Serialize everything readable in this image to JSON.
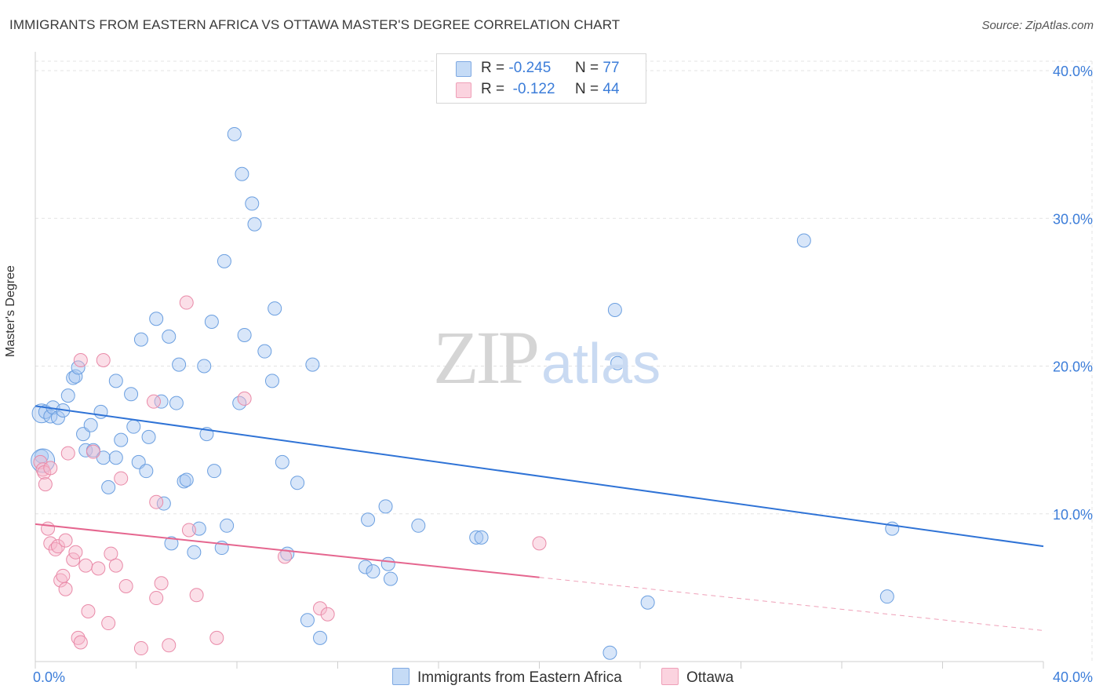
{
  "header": {
    "title": "IMMIGRANTS FROM EASTERN AFRICA VS OTTAWA MASTER'S DEGREE CORRELATION CHART",
    "source": "Source: ZipAtlas.com"
  },
  "legend_top": {
    "rows": [
      {
        "r_label": "R =",
        "r_value": "-0.245",
        "n_label": "N =",
        "n_value": "77",
        "color": "#a9c8f1"
      },
      {
        "r_label": "R =",
        "r_value": "-0.122",
        "n_label": "N =",
        "n_value": "44",
        "color": "#f6b8cb"
      }
    ]
  },
  "legend_bottom": {
    "items": [
      {
        "label": "Immigrants from Eastern Africa",
        "color": "#a9c8f1"
      },
      {
        "label": "Ottawa",
        "color": "#f6b8cb"
      }
    ]
  },
  "watermark": {
    "zip": "ZIP",
    "atlas": "atlas"
  },
  "chart_data": {
    "type": "scatter",
    "title": "IMMIGRANTS FROM EASTERN AFRICA VS OTTAWA MASTER'S DEGREE CORRELATION CHART",
    "xlabel": "",
    "ylabel": "Master's Degree",
    "xlim": [
      0,
      40
    ],
    "ylim": [
      0,
      40
    ],
    "x_tick_labels": [
      "0.0%",
      "40.0%"
    ],
    "y_tick_labels": [
      "10.0%",
      "20.0%",
      "30.0%",
      "40.0%"
    ],
    "y_ticks": [
      10,
      20,
      30,
      40
    ],
    "grid": true,
    "legend_position": "top-center",
    "series": [
      {
        "name": "Immigrants from Eastern Africa",
        "color": "#a9c8f1",
        "stroke": "#6b9fe0",
        "points": [
          [
            0.25,
            16.8
          ],
          [
            0.25,
            13.9
          ],
          [
            0.4,
            16.9
          ],
          [
            0.6,
            16.6
          ],
          [
            0.7,
            17.2
          ],
          [
            0.9,
            16.5
          ],
          [
            1.1,
            17.0
          ],
          [
            1.3,
            18.0
          ],
          [
            1.5,
            19.2
          ],
          [
            1.6,
            19.3
          ],
          [
            1.7,
            19.9
          ],
          [
            1.9,
            15.4
          ],
          [
            2.0,
            14.3
          ],
          [
            2.2,
            16.0
          ],
          [
            2.3,
            14.3
          ],
          [
            2.6,
            16.9
          ],
          [
            2.7,
            13.8
          ],
          [
            2.9,
            11.8
          ],
          [
            3.2,
            13.8
          ],
          [
            3.2,
            19.0
          ],
          [
            3.4,
            15.0
          ],
          [
            3.8,
            18.1
          ],
          [
            3.9,
            15.9
          ],
          [
            4.1,
            13.5
          ],
          [
            4.2,
            21.8
          ],
          [
            4.4,
            12.9
          ],
          [
            4.5,
            15.2
          ],
          [
            4.8,
            23.2
          ],
          [
            5.0,
            17.6
          ],
          [
            5.1,
            10.7
          ],
          [
            5.3,
            22.0
          ],
          [
            5.4,
            8.0
          ],
          [
            5.6,
            17.5
          ],
          [
            5.7,
            20.1
          ],
          [
            5.9,
            12.2
          ],
          [
            6.0,
            12.3
          ],
          [
            6.3,
            7.4
          ],
          [
            6.5,
            9.0
          ],
          [
            6.7,
            20.0
          ],
          [
            6.8,
            15.4
          ],
          [
            7.0,
            23.0
          ],
          [
            7.1,
            12.9
          ],
          [
            7.4,
            7.7
          ],
          [
            7.5,
            27.1
          ],
          [
            7.6,
            9.2
          ],
          [
            7.9,
            35.7
          ],
          [
            8.1,
            17.5
          ],
          [
            8.2,
            33.0
          ],
          [
            8.3,
            22.1
          ],
          [
            8.6,
            31.0
          ],
          [
            8.7,
            29.6
          ],
          [
            9.1,
            21.0
          ],
          [
            9.4,
            19.0
          ],
          [
            9.5,
            23.9
          ],
          [
            9.8,
            13.5
          ],
          [
            10.0,
            7.3
          ],
          [
            10.4,
            12.1
          ],
          [
            10.8,
            2.8
          ],
          [
            11.0,
            20.1
          ],
          [
            11.3,
            1.6
          ],
          [
            13.1,
            6.4
          ],
          [
            13.2,
            9.6
          ],
          [
            13.4,
            6.1
          ],
          [
            13.9,
            10.5
          ],
          [
            14.0,
            6.6
          ],
          [
            14.1,
            5.6
          ],
          [
            15.2,
            9.2
          ],
          [
            17.5,
            8.4
          ],
          [
            17.7,
            8.4
          ],
          [
            22.8,
            0.6
          ],
          [
            23.0,
            23.8
          ],
          [
            23.1,
            20.2
          ],
          [
            24.3,
            4.0
          ],
          [
            30.5,
            28.5
          ],
          [
            33.8,
            4.4
          ],
          [
            34.0,
            9.0
          ],
          [
            0.3,
            13.6
          ]
        ],
        "trend": {
          "x": [
            0,
            40
          ],
          "y": [
            17.3,
            7.8
          ]
        }
      },
      {
        "name": "Ottawa",
        "color": "#f6b8cb",
        "stroke": "#e98aa8",
        "points": [
          [
            0.2,
            13.5
          ],
          [
            0.3,
            13.0
          ],
          [
            0.35,
            12.8
          ],
          [
            0.4,
            12.0
          ],
          [
            0.6,
            13.1
          ],
          [
            0.5,
            9.0
          ],
          [
            0.6,
            8.0
          ],
          [
            0.8,
            7.6
          ],
          [
            0.9,
            7.8
          ],
          [
            1.0,
            5.5
          ],
          [
            1.1,
            5.8
          ],
          [
            1.2,
            8.2
          ],
          [
            1.2,
            4.9
          ],
          [
            1.3,
            14.1
          ],
          [
            1.5,
            6.9
          ],
          [
            1.6,
            7.4
          ],
          [
            1.7,
            1.6
          ],
          [
            1.8,
            1.3
          ],
          [
            1.8,
            20.4
          ],
          [
            2.0,
            6.5
          ],
          [
            2.1,
            3.4
          ],
          [
            2.3,
            14.2
          ],
          [
            2.5,
            6.3
          ],
          [
            2.7,
            20.4
          ],
          [
            2.9,
            2.6
          ],
          [
            3.0,
            7.3
          ],
          [
            3.2,
            6.5
          ],
          [
            3.4,
            12.4
          ],
          [
            3.6,
            5.1
          ],
          [
            4.2,
            0.9
          ],
          [
            4.7,
            17.6
          ],
          [
            4.8,
            10.8
          ],
          [
            4.8,
            4.3
          ],
          [
            5.0,
            5.3
          ],
          [
            5.3,
            1.1
          ],
          [
            6.0,
            24.3
          ],
          [
            6.1,
            8.9
          ],
          [
            6.4,
            4.5
          ],
          [
            7.2,
            1.6
          ],
          [
            8.3,
            17.8
          ],
          [
            9.9,
            7.1
          ],
          [
            11.3,
            3.6
          ],
          [
            11.6,
            3.2
          ],
          [
            20.0,
            8.0
          ]
        ],
        "trend": {
          "x": [
            0,
            20
          ],
          "y": [
            9.3,
            5.7
          ]
        },
        "trend_extension": {
          "x": [
            20,
            40
          ],
          "y": [
            5.7,
            2.1
          ]
        }
      }
    ]
  }
}
